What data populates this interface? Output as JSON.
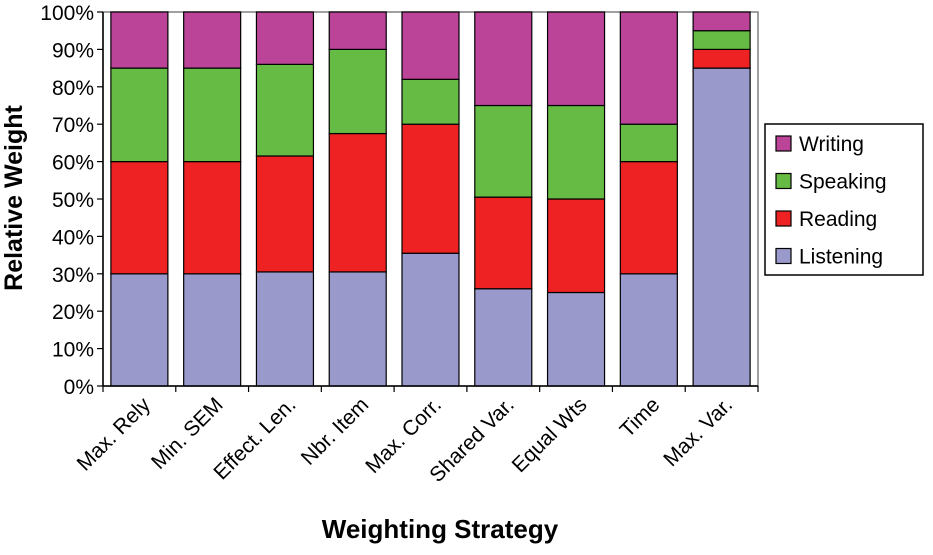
{
  "chart_data": {
    "type": "bar",
    "stacked": true,
    "normalized": true,
    "title": "",
    "xlabel": "Weighting Strategy",
    "ylabel": "Relative Weight",
    "ylim": [
      0,
      100
    ],
    "yticks": [
      "0%",
      "10%",
      "20%",
      "30%",
      "40%",
      "50%",
      "60%",
      "70%",
      "80%",
      "90%",
      "100%"
    ],
    "grid": false,
    "legend_position": "right",
    "categories": [
      "Max. Rely",
      "Min. SEM",
      "Effect. Len.",
      "Nbr. Item",
      "Max. Corr.",
      "Shared Var.",
      "Equal Wts",
      "Time",
      "Max. Var."
    ],
    "series": [
      {
        "name": "Listening",
        "color": "#9999cc",
        "values": [
          30,
          30,
          30.5,
          30.5,
          35.5,
          26,
          25,
          30,
          85
        ]
      },
      {
        "name": "Reading",
        "color": "#ee2222",
        "values": [
          30,
          30,
          31,
          37,
          34.5,
          24.5,
          25,
          30,
          5
        ]
      },
      {
        "name": "Speaking",
        "color": "#66bb44",
        "values": [
          25,
          25,
          24.5,
          22.5,
          12,
          24.5,
          25,
          10,
          5
        ]
      },
      {
        "name": "Writing",
        "color": "#bb4499",
        "values": [
          15,
          15,
          14,
          10,
          18,
          25,
          25,
          30,
          5
        ]
      }
    ],
    "legend_order": [
      "Writing",
      "Speaking",
      "Reading",
      "Listening"
    ]
  }
}
